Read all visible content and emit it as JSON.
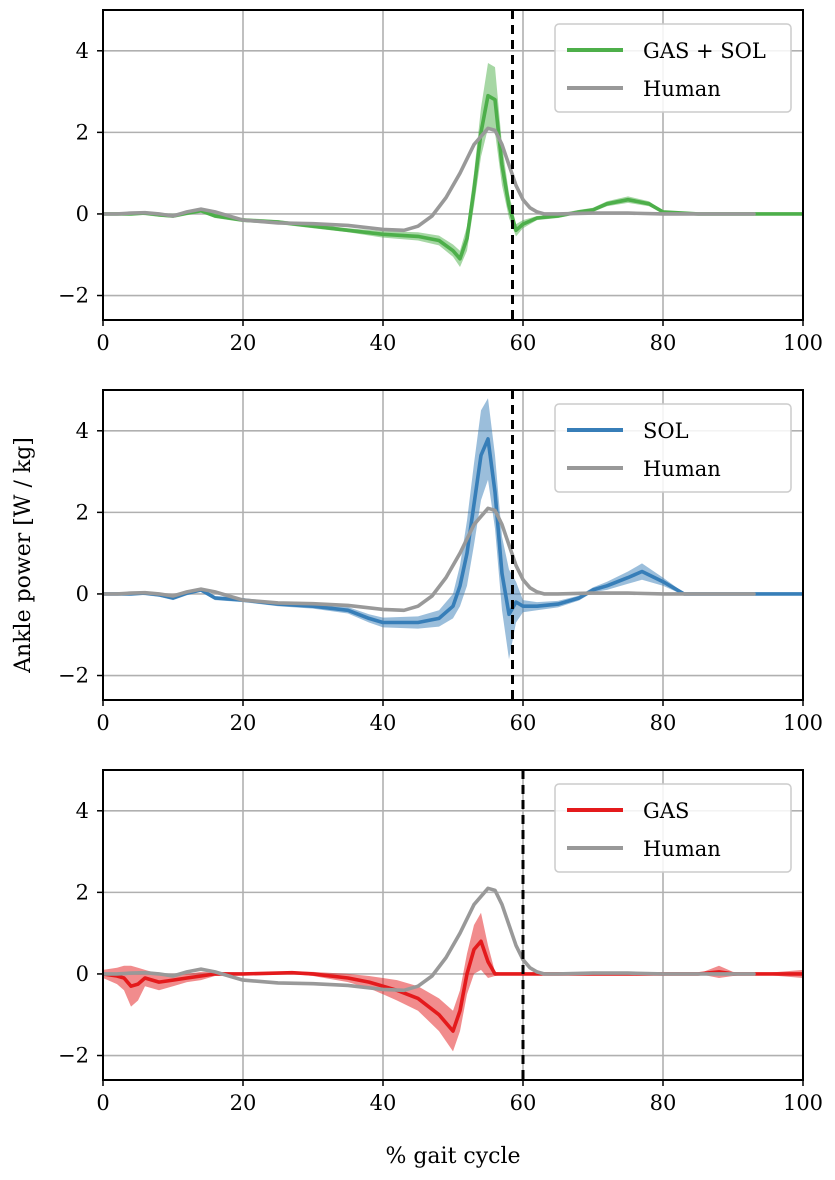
{
  "figure": {
    "ylabel": "Ankle power [W / kg]",
    "xlabel": "% gait cycle"
  },
  "chart_data": [
    {
      "type": "line",
      "title": "",
      "xlim": [
        0,
        100
      ],
      "ylim": [
        -2.6,
        5
      ],
      "xticks": [
        0,
        20,
        40,
        60,
        80,
        100
      ],
      "xtick_labels": [
        "0",
        "20",
        "40",
        "60",
        "80",
        "100"
      ],
      "yticks": [
        -2,
        0,
        2,
        4
      ],
      "ytick_labels": [
        "−2",
        "0",
        "2",
        "4"
      ],
      "grid": true,
      "legend_position": "top-right",
      "toe_off_line": 58.5,
      "series": [
        {
          "name": "GAS + SOL",
          "color": "#4daf4a",
          "x": [
            0,
            4,
            6,
            8,
            10,
            12,
            14,
            16,
            20,
            25,
            30,
            35,
            40,
            45,
            48,
            50,
            51,
            52,
            53,
            54,
            55,
            56,
            57,
            58,
            59,
            60,
            62,
            65,
            68,
            70,
            72,
            75,
            78,
            80,
            85,
            90,
            93,
            100
          ],
          "values": [
            0,
            0,
            0.02,
            -0.02,
            -0.05,
            0.02,
            0.08,
            -0.05,
            -0.15,
            -0.2,
            -0.3,
            -0.4,
            -0.5,
            -0.55,
            -0.65,
            -0.9,
            -1.1,
            -0.6,
            0.6,
            2.0,
            2.9,
            2.8,
            1.2,
            0.2,
            -0.4,
            -0.25,
            -0.1,
            -0.05,
            0.05,
            0.1,
            0.25,
            0.35,
            0.25,
            0.05,
            0,
            0,
            0,
            0
          ],
          "band": [
            0,
            0,
            0.05,
            0.05,
            0.05,
            0.05,
            0.05,
            0.05,
            0.05,
            0.05,
            0.05,
            0.05,
            0.08,
            0.1,
            0.12,
            0.15,
            0.2,
            0.3,
            0.4,
            0.6,
            0.8,
            0.8,
            0.5,
            0.3,
            0.15,
            0.1,
            0.05,
            0.05,
            0.05,
            0.05,
            0.06,
            0.08,
            0.06,
            0.03,
            0,
            0,
            0,
            0
          ]
        },
        {
          "name": "Human",
          "color": "#999999",
          "x": [
            0,
            2,
            4,
            6,
            8,
            10,
            12,
            14,
            16,
            18,
            20,
            25,
            30,
            35,
            40,
            43,
            45,
            47,
            49,
            51,
            53,
            55,
            56,
            57,
            58,
            59,
            60,
            61,
            62,
            63,
            65,
            70,
            75,
            80,
            85,
            90,
            93
          ],
          "values": [
            0,
            0,
            0.02,
            0.03,
            0,
            -0.05,
            0.05,
            0.12,
            0.05,
            -0.05,
            -0.15,
            -0.22,
            -0.24,
            -0.28,
            -0.38,
            -0.4,
            -0.3,
            -0.05,
            0.4,
            1.0,
            1.7,
            2.1,
            2.05,
            1.7,
            1.2,
            0.7,
            0.35,
            0.15,
            0.05,
            0,
            0,
            0.02,
            0.02,
            0,
            0,
            0,
            0
          ]
        }
      ]
    },
    {
      "type": "line",
      "title": "",
      "xlim": [
        0,
        100
      ],
      "ylim": [
        -2.6,
        5
      ],
      "xticks": [
        0,
        20,
        40,
        60,
        80,
        100
      ],
      "xtick_labels": [
        "0",
        "20",
        "40",
        "60",
        "80",
        "100"
      ],
      "yticks": [
        -2,
        0,
        2,
        4
      ],
      "ytick_labels": [
        "−2",
        "0",
        "2",
        "4"
      ],
      "grid": true,
      "legend_position": "top-right",
      "toe_off_line": 58.5,
      "series": [
        {
          "name": "SOL",
          "color": "#377eb8",
          "x": [
            0,
            4,
            6,
            8,
            10,
            12,
            14,
            16,
            20,
            25,
            30,
            35,
            38,
            40,
            45,
            48,
            50,
            51,
            52,
            53,
            54,
            55,
            56,
            57,
            58,
            59,
            60,
            62,
            65,
            68,
            70,
            72,
            75,
            77,
            80,
            83,
            85,
            90,
            93,
            100
          ],
          "values": [
            0,
            0,
            0.02,
            -0.02,
            -0.1,
            0.02,
            0.1,
            -0.1,
            -0.15,
            -0.25,
            -0.3,
            -0.4,
            -0.6,
            -0.7,
            -0.7,
            -0.6,
            -0.3,
            0.2,
            1.0,
            2.2,
            3.4,
            3.8,
            2.5,
            0.5,
            -0.5,
            -0.2,
            -0.3,
            -0.3,
            -0.25,
            -0.1,
            0.1,
            0.2,
            0.4,
            0.55,
            0.3,
            0,
            0,
            0,
            0,
            0
          ],
          "band": [
            0,
            0,
            0.05,
            0.05,
            0.05,
            0.05,
            0.05,
            0.05,
            0.05,
            0.05,
            0.06,
            0.08,
            0.1,
            0.12,
            0.15,
            0.2,
            0.3,
            0.5,
            0.8,
            1.0,
            1.1,
            1.0,
            0.9,
            0.9,
            1.1,
            0.5,
            0.15,
            0.1,
            0.08,
            0.06,
            0.06,
            0.1,
            0.15,
            0.2,
            0.1,
            0.03,
            0,
            0,
            0,
            0
          ]
        },
        {
          "name": "Human",
          "color": "#999999",
          "x": [
            0,
            2,
            4,
            6,
            8,
            10,
            12,
            14,
            16,
            18,
            20,
            25,
            30,
            35,
            40,
            43,
            45,
            47,
            49,
            51,
            53,
            55,
            56,
            57,
            58,
            59,
            60,
            61,
            62,
            63,
            65,
            70,
            75,
            80,
            85,
            90,
            93
          ],
          "values": [
            0,
            0,
            0.02,
            0.03,
            0,
            -0.05,
            0.05,
            0.12,
            0.05,
            -0.05,
            -0.15,
            -0.22,
            -0.24,
            -0.28,
            -0.38,
            -0.4,
            -0.3,
            -0.05,
            0.4,
            1.0,
            1.7,
            2.1,
            2.05,
            1.7,
            1.2,
            0.7,
            0.35,
            0.15,
            0.05,
            0,
            0,
            0.02,
            0.02,
            0,
            0,
            0,
            0
          ]
        }
      ]
    },
    {
      "type": "line",
      "title": "",
      "xlim": [
        0,
        100
      ],
      "ylim": [
        -2.6,
        5
      ],
      "xticks": [
        0,
        20,
        40,
        60,
        80,
        100
      ],
      "xtick_labels": [
        "0",
        "20",
        "40",
        "60",
        "80",
        "100"
      ],
      "yticks": [
        -2,
        0,
        2,
        4
      ],
      "ytick_labels": [
        "−2",
        "0",
        "2",
        "4"
      ],
      "grid": true,
      "legend_position": "top-right",
      "toe_off_line": 60,
      "series": [
        {
          "name": "GAS",
          "color": "#e41a1c",
          "x": [
            0,
            2,
            3,
            4,
            5,
            6,
            8,
            10,
            12,
            14,
            16,
            20,
            25,
            27,
            30,
            35,
            38,
            40,
            42,
            45,
            48,
            50,
            51,
            52,
            53,
            54,
            55,
            56,
            58,
            60,
            65,
            70,
            80,
            85,
            88,
            90,
            93,
            100
          ],
          "values": [
            0,
            -0.05,
            -0.1,
            -0.3,
            -0.25,
            -0.1,
            -0.2,
            -0.15,
            -0.1,
            -0.05,
            0,
            0,
            0.02,
            0.03,
            0,
            -0.1,
            -0.2,
            -0.3,
            -0.4,
            -0.6,
            -1.0,
            -1.4,
            -0.9,
            0,
            0.6,
            0.8,
            0.3,
            0,
            0,
            0,
            0,
            0,
            0,
            0,
            0.05,
            0,
            0,
            0
          ],
          "band": [
            0.1,
            0.2,
            0.3,
            0.5,
            0.4,
            0.2,
            0.2,
            0.15,
            0.1,
            0.1,
            0.05,
            0.03,
            0.03,
            0.03,
            0.05,
            0.1,
            0.15,
            0.2,
            0.25,
            0.3,
            0.4,
            0.5,
            0.5,
            0.5,
            0.6,
            0.7,
            0.4,
            0.05,
            0,
            0,
            0,
            0,
            0,
            0,
            0.15,
            0.05,
            0,
            0.1
          ]
        },
        {
          "name": "Human",
          "color": "#999999",
          "x": [
            0,
            2,
            4,
            6,
            8,
            10,
            12,
            14,
            16,
            18,
            20,
            25,
            30,
            35,
            40,
            43,
            45,
            47,
            49,
            51,
            53,
            55,
            56,
            57,
            58,
            59,
            60,
            61,
            62,
            63,
            65,
            70,
            75,
            80,
            85,
            90,
            93
          ],
          "values": [
            0,
            0,
            0.02,
            0.03,
            0,
            -0.05,
            0.05,
            0.12,
            0.05,
            -0.05,
            -0.15,
            -0.22,
            -0.24,
            -0.28,
            -0.38,
            -0.4,
            -0.3,
            -0.05,
            0.4,
            1.0,
            1.7,
            2.1,
            2.05,
            1.7,
            1.2,
            0.7,
            0.35,
            0.15,
            0.05,
            0,
            0,
            0.02,
            0.02,
            0,
            0,
            0,
            0
          ]
        }
      ]
    }
  ]
}
